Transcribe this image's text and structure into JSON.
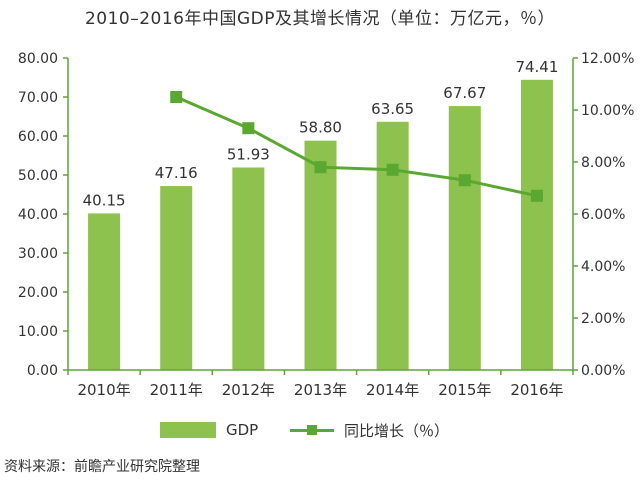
{
  "title": "2010–2016年中国GDP及其增长情况（单位：万亿元，％）",
  "source": "资料来源：前瞻产业研究院整理",
  "chart_data": {
    "type": "bar",
    "categories": [
      "2010年",
      "2011年",
      "2012年",
      "2013年",
      "2014年",
      "2015年",
      "2016年"
    ],
    "series": [
      {
        "name": "GDP",
        "type": "bar",
        "axis": "left",
        "values": [
          40.15,
          47.16,
          51.93,
          58.8,
          63.65,
          67.67,
          74.41
        ],
        "labels": [
          "40.15",
          "47.16",
          "51.93",
          "58.80",
          "63.65",
          "67.67",
          "74.41"
        ],
        "color": "#8dc24e"
      },
      {
        "name": "同比增长（％）",
        "type": "line",
        "axis": "right",
        "values": [
          null,
          10.5,
          9.3,
          7.8,
          7.7,
          7.3,
          6.7
        ],
        "color": "#5aa732"
      }
    ],
    "y_left": {
      "min": 0,
      "max": 80,
      "ticks": [
        "0.00",
        "10.00",
        "20.00",
        "30.00",
        "40.00",
        "50.00",
        "60.00",
        "70.00",
        "80.00"
      ]
    },
    "y_right": {
      "min": 0,
      "max": 12,
      "ticks": [
        "0.00%",
        "2.00%",
        "4.00%",
        "6.00%",
        "8.00%",
        "10.00%",
        "12.00%"
      ]
    },
    "grid": false,
    "legend_position": "bottom"
  }
}
